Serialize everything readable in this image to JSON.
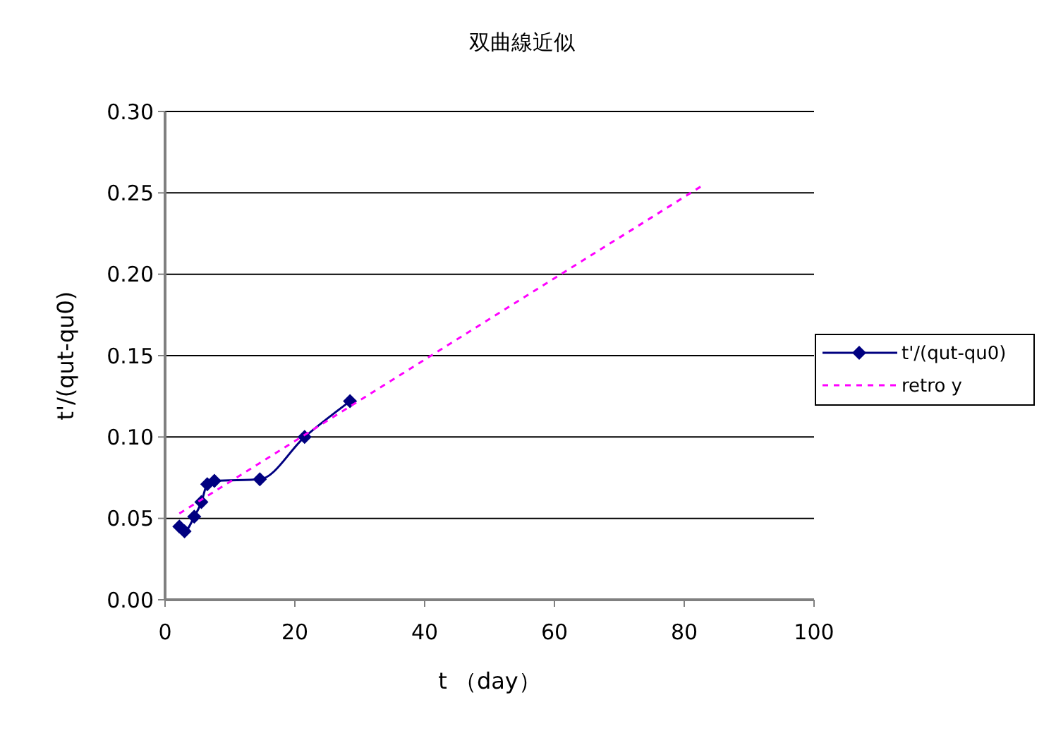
{
  "chart_data": {
    "type": "line",
    "title": "双曲線近似",
    "xlabel": "t （day）",
    "ylabel": "t'/(qut-qu0)",
    "xlim": [
      0,
      100
    ],
    "xticks": [
      0,
      20,
      40,
      60,
      80,
      100
    ],
    "ylim": [
      0,
      0.3
    ],
    "yticks": [
      {
        "value": 0,
        "label": "0.00"
      },
      {
        "value": 0.05,
        "label": "0.05"
      },
      {
        "value": 0.1,
        "label": "0.10"
      },
      {
        "value": 0.15,
        "label": "0.15"
      },
      {
        "value": 0.2,
        "label": "0.20"
      },
      {
        "value": 0.25,
        "label": "0.25"
      },
      {
        "value": 0.3,
        "label": "0.30"
      }
    ],
    "grid": "y",
    "legend": "right",
    "series": [
      {
        "name": "t'/(qut-qu0)",
        "color": "#000080",
        "marker": "diamond",
        "line_style": "solid",
        "x": [
          2.2,
          3,
          4.5,
          5.6,
          6.5,
          7.6,
          14.6,
          21.5,
          28.5
        ],
        "values": [
          0.045,
          0.042,
          0.051,
          0.06,
          0.071,
          0.073,
          0.074,
          0.1,
          0.122
        ]
      },
      {
        "name": "retro y",
        "color": "#ff00ff",
        "marker": "none",
        "line_style": "dashed",
        "x": [
          2.2,
          82.6
        ],
        "values": [
          0.053,
          0.254
        ]
      }
    ]
  }
}
